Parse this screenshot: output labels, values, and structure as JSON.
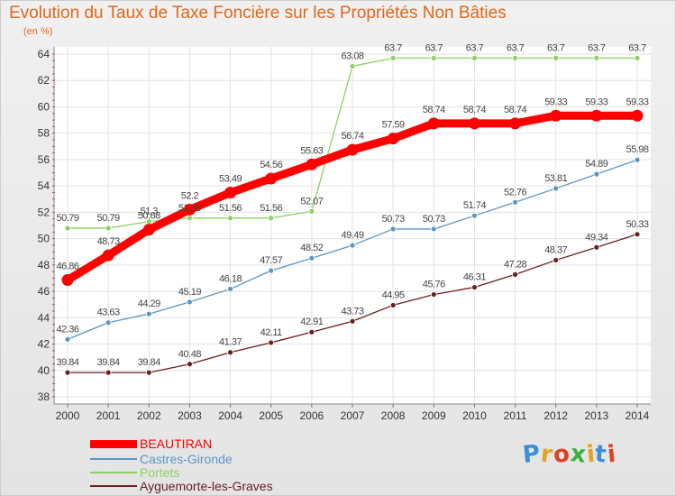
{
  "chart_data": {
    "type": "line",
    "title": "Evolution du Taux de Taxe Foncière sur les Propriétés Non Bâties",
    "ylabel": "(en %)",
    "xlabel": "",
    "ylim": [
      38,
      64
    ],
    "yticks": [
      "38",
      "40",
      "42",
      "44",
      "46",
      "48",
      "50",
      "52",
      "54",
      "56",
      "58",
      "60",
      "62",
      "64"
    ],
    "categories": [
      "2000",
      "2001",
      "2002",
      "2003",
      "2004",
      "2005",
      "2006",
      "2007",
      "2008",
      "2009",
      "2010",
      "2011",
      "2012",
      "2013",
      "2014"
    ],
    "legend_position": "bottom-left",
    "series": [
      {
        "name": "BEAUTIRAN",
        "color": "#ff0000",
        "values": [
          46.86,
          48.73,
          50.68,
          52.2,
          53.49,
          54.56,
          55.63,
          56.74,
          57.59,
          58.74,
          58.74,
          58.74,
          59.33,
          59.33,
          59.33
        ],
        "labels": [
          "46.86",
          "48.73",
          "50.68",
          "52.2",
          "53.49",
          "54.56",
          "55.63",
          "56.74",
          "57.59",
          "58.74",
          "58.74",
          "58.74",
          "59.33",
          "59.33",
          "59.33"
        ]
      },
      {
        "name": "Castres-Gironde",
        "color": "#6aa6d6",
        "values": [
          42.36,
          43.63,
          44.29,
          45.19,
          46.18,
          47.57,
          48.52,
          49.49,
          50.73,
          50.73,
          51.74,
          52.76,
          53.81,
          54.89,
          55.98
        ],
        "labels": [
          "42.36",
          "43.63",
          "44.29",
          "45.19",
          "46.18",
          "47.57",
          "48.52",
          "49.49",
          "50.73",
          "50.73",
          "51.74",
          "52.76",
          "53.81",
          "54.89",
          "55.98"
        ]
      },
      {
        "name": "Portets",
        "color": "#94d86a",
        "values": [
          50.79,
          50.79,
          51.3,
          51.56,
          51.56,
          51.56,
          52.07,
          63.08,
          63.7,
          63.7,
          63.7,
          63.7,
          63.7,
          63.7,
          63.7
        ],
        "labels": [
          "50.79",
          "50.79",
          "51.3",
          "51.56",
          "51.56",
          "51.56",
          "52.07",
          "63.08",
          "63.7",
          "63.7",
          "63.7",
          "63.7",
          "63.7",
          "63.7",
          "63.7"
        ]
      },
      {
        "name": "Ayguemorte-les-Graves",
        "color": "#7a2a2a",
        "values": [
          39.84,
          39.84,
          39.84,
          40.48,
          41.37,
          42.11,
          42.91,
          43.73,
          44.95,
          45.76,
          46.31,
          47.28,
          48.37,
          49.34,
          50.33
        ],
        "labels": [
          "39.84",
          "39.84",
          "39.84",
          "40.48",
          "41.37",
          "42.11",
          "42.91",
          "43.73",
          "44.95",
          "45.76",
          "46.31",
          "47.28",
          "48.37",
          "49.34",
          "50.33"
        ]
      }
    ]
  },
  "logo": {
    "text": "Proxiti",
    "letter_colors": [
      "#3a8fd8",
      "#e8a020",
      "#e04020",
      "#3ab040",
      "#e8a020",
      "#3a8fd8",
      "#e04020"
    ]
  }
}
